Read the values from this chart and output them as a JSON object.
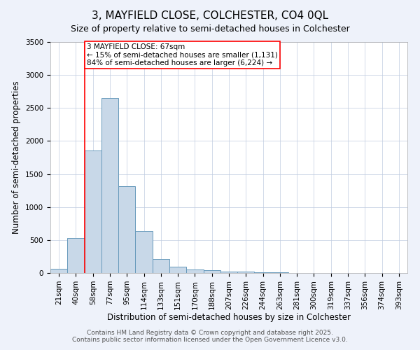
{
  "title": "3, MAYFIELD CLOSE, COLCHESTER, CO4 0QL",
  "subtitle": "Size of property relative to semi-detached houses in Colchester",
  "xlabel": "Distribution of semi-detached houses by size in Colchester",
  "ylabel": "Number of semi-detached properties",
  "categories": [
    "21sqm",
    "40sqm",
    "58sqm",
    "77sqm",
    "95sqm",
    "114sqm",
    "133sqm",
    "151sqm",
    "170sqm",
    "188sqm",
    "207sqm",
    "226sqm",
    "244sqm",
    "263sqm",
    "281sqm",
    "300sqm",
    "319sqm",
    "337sqm",
    "356sqm",
    "374sqm",
    "393sqm"
  ],
  "values": [
    60,
    530,
    1860,
    2650,
    1320,
    640,
    210,
    95,
    55,
    40,
    25,
    18,
    12,
    8,
    5,
    4,
    3,
    2,
    2,
    1,
    1
  ],
  "bar_color": "#c8d8e8",
  "bar_edge_color": "#6699bb",
  "red_line_index": 2,
  "annotation_title": "3 MAYFIELD CLOSE: 67sqm",
  "annotation_line1": "← 15% of semi-detached houses are smaller (1,131)",
  "annotation_line2": "84% of semi-detached houses are larger (6,224) →",
  "ylim": [
    0,
    3500
  ],
  "yticks": [
    0,
    500,
    1000,
    1500,
    2000,
    2500,
    3000,
    3500
  ],
  "footnote1": "Contains HM Land Registry data © Crown copyright and database right 2025.",
  "footnote2": "Contains public sector information licensed under the Open Government Licence v3.0.",
  "background_color": "#eef2fa",
  "plot_background": "#ffffff",
  "title_fontsize": 11,
  "subtitle_fontsize": 9,
  "axis_label_fontsize": 8.5,
  "tick_fontsize": 7.5,
  "annotation_fontsize": 7.5,
  "footnote_fontsize": 6.5
}
